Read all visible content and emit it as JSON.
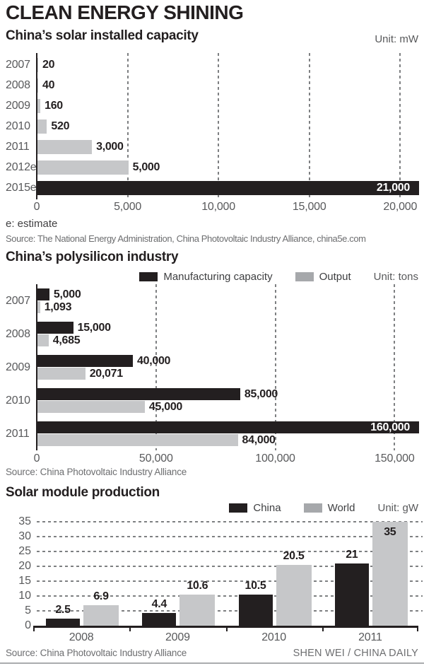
{
  "page": {
    "title": "CLEAN ENERGY SHINING",
    "credit": "SHEN WEI / CHINA DAILY"
  },
  "colors": {
    "black": "#231f20",
    "gray": "#c6c7c9",
    "legend_gray": "#a6a8ab",
    "grid": "#7e8082",
    "label_gray": "#58595b",
    "source_gray": "#6d6e70"
  },
  "chart_data": [
    {
      "id": "solar-installed-capacity",
      "type": "bar",
      "orientation": "horizontal",
      "title": "China’s solar installed capacity",
      "unit": "Unit: mW",
      "categories": [
        "2007",
        "2008",
        "2009",
        "2010",
        "2011",
        "2012e",
        "2015e"
      ],
      "values": [
        20,
        40,
        160,
        520,
        3000,
        5000,
        21000
      ],
      "value_labels": [
        "20",
        "40",
        "160",
        "520",
        "3,000",
        "5,000",
        "21,000"
      ],
      "bar_colors": [
        "gray",
        "gray",
        "gray",
        "gray",
        "gray",
        "gray",
        "black"
      ],
      "xlim": [
        0,
        21000
      ],
      "x_ticks": [
        0,
        5000,
        10000,
        15000,
        20000
      ],
      "x_tick_labels": [
        "0",
        "5,000",
        "10,000",
        "15,000",
        "20,000"
      ],
      "grid": "vertical-dashed",
      "footnote": "e: estimate",
      "source": "Source: The National Energy Administration, China Photovoltaic Industry Alliance, china5e.com"
    },
    {
      "id": "polysilicon-industry",
      "type": "bar",
      "orientation": "horizontal",
      "title": "China’s polysilicon industry",
      "unit": "Unit: tons",
      "legend": [
        {
          "name": "Manufacturing capacity",
          "color": "black"
        },
        {
          "name": "Output",
          "color": "gray"
        }
      ],
      "categories": [
        "2007",
        "2008",
        "2009",
        "2010",
        "2011"
      ],
      "series": [
        {
          "name": "Manufacturing capacity",
          "color": "black",
          "values": [
            5000,
            15000,
            40000,
            85000,
            160000
          ],
          "value_labels": [
            "5,000",
            "15,000",
            "40,000",
            "85,000",
            "160,000"
          ]
        },
        {
          "name": "Output",
          "color": "gray",
          "values": [
            1093,
            4685,
            20071,
            45000,
            84000
          ],
          "value_labels": [
            "1,093",
            "4,685",
            "20,071",
            "45,000",
            "84,000"
          ]
        }
      ],
      "xlim": [
        0,
        160000
      ],
      "x_ticks": [
        0,
        50000,
        100000,
        150000
      ],
      "x_tick_labels": [
        "0",
        "50,000",
        "100,000",
        "150,000"
      ],
      "grid": "vertical-dashed",
      "source": "Source: China Photovoltaic Industry Alliance"
    },
    {
      "id": "solar-module-production",
      "type": "bar",
      "orientation": "vertical",
      "title": "Solar module production",
      "unit": "Unit: gW",
      "legend": [
        {
          "name": "China",
          "color": "black"
        },
        {
          "name": "World",
          "color": "gray"
        }
      ],
      "categories": [
        "2008",
        "2009",
        "2010",
        "2011"
      ],
      "series": [
        {
          "name": "China",
          "color": "black",
          "values": [
            2.5,
            4.4,
            10.5,
            21
          ],
          "value_labels": [
            "2.5",
            "4.4",
            "10.5",
            "21"
          ]
        },
        {
          "name": "World",
          "color": "gray",
          "values": [
            6.9,
            10.6,
            20.5,
            35
          ],
          "value_labels": [
            "6.9",
            "10.6",
            "20.5",
            "35"
          ]
        }
      ],
      "ylim": [
        0,
        35
      ],
      "y_ticks": [
        0,
        5,
        10,
        15,
        20,
        25,
        30,
        35
      ],
      "y_tick_labels": [
        "0",
        "5",
        "10",
        "15",
        "20",
        "25",
        "30",
        "35"
      ],
      "grid": "horizontal-dashed",
      "source": "Source: China Photovoltaic Industry Alliance"
    }
  ]
}
